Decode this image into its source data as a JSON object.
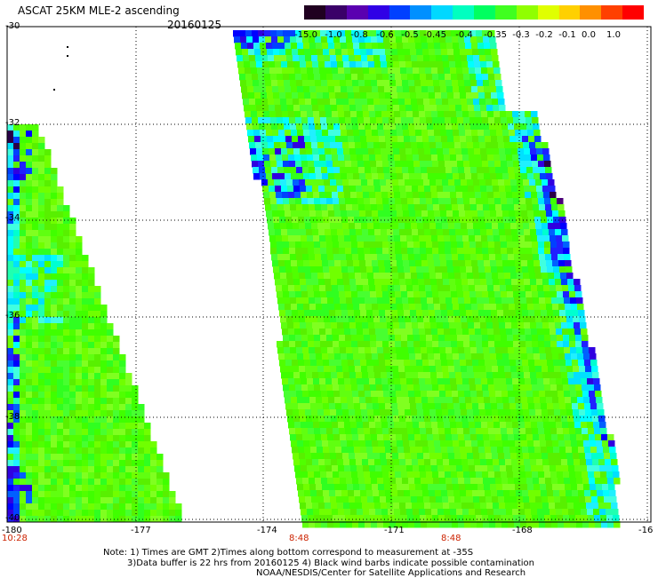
{
  "header": {
    "title": "ASCAT 25KM MLE-2 ascending",
    "date": "20160125"
  },
  "colorbar": {
    "labels": [
      "-15.0",
      "-1.0",
      "-0.8",
      "-0.6",
      "-0.5",
      "-0.45",
      "-0.4",
      "-0.35",
      "-0.3",
      "-0.2",
      "-0.1",
      "0.0",
      "1.0"
    ],
    "colors": [
      "#200020",
      "#3a0068",
      "#5a00b0",
      "#3000e6",
      "#0040ff",
      "#0090ff",
      "#00d8ff",
      "#00ffc0",
      "#00ff60",
      "#40ff20",
      "#90ff00",
      "#e0ff00",
      "#ffd000",
      "#ff9000",
      "#ff4000",
      "#ff0000"
    ]
  },
  "axes": {
    "x_ticks": [
      "-180",
      "-177",
      "-174",
      "-171",
      "-168",
      "-16"
    ],
    "y_ticks": [
      "-30",
      "-32",
      "-34",
      "-36",
      "-38",
      "-40"
    ]
  },
  "times": [
    "10:28",
    "8:48",
    "8:48"
  ],
  "notes": {
    "line1": "Note: 1) Times are GMT 2)Times along bottom correspond to measurement at -35S",
    "line2": "3)Data buffer is 22 hrs from 20160125 4) Black wind barbs indicate possible contamination",
    "line3": "NOAA/NESDIS/Center for Satellite Applications and Research"
  }
}
